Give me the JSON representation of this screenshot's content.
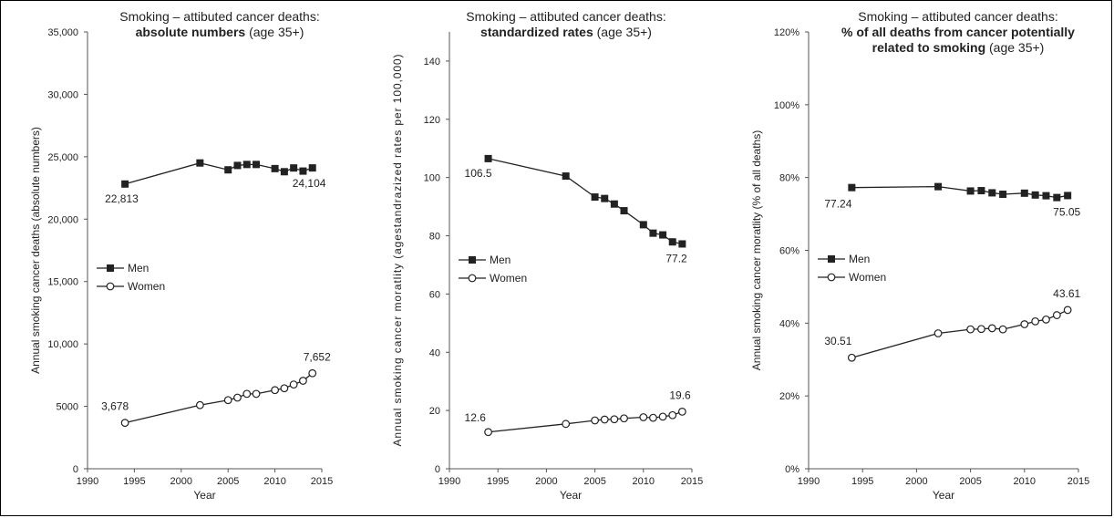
{
  "figure": {
    "x_axis_label": "Year"
  },
  "legend": {
    "men": "Men",
    "women": "Women"
  },
  "chart_data": [
    {
      "type": "line",
      "title_lines": [
        [
          {
            "text": "Smoking – attibuted cancer deaths:",
            "bold": false
          }
        ],
        [
          {
            "text": "absolute numbers",
            "bold": true
          },
          {
            "text": " (age 35+)",
            "bold": false
          }
        ]
      ],
      "xlabel": "Year",
      "ylabel": "Annual smoking cancer deaths (absolute numbers)",
      "xlim": [
        1990,
        2015
      ],
      "ylim": [
        0,
        35000
      ],
      "x_ticks": [
        1990,
        1995,
        2000,
        2005,
        2010,
        2015
      ],
      "y_ticks": [
        0,
        5000,
        10000,
        15000,
        20000,
        25000,
        30000,
        35000
      ],
      "y_tick_labels": [
        "0",
        "5000",
        "10,000",
        "15,000",
        "20,000",
        "25,000",
        "30,000",
        "35,000"
      ],
      "x": [
        1994,
        2002,
        2005,
        2006,
        2007,
        2008,
        2010,
        2011,
        2012,
        2013,
        2014
      ],
      "series": [
        {
          "name": "Men",
          "marker": "square-filled",
          "values": [
            22813,
            24500,
            23950,
            24300,
            24380,
            24380,
            24050,
            23800,
            24100,
            23850,
            24104
          ]
        },
        {
          "name": "Women",
          "marker": "circle-open",
          "values": [
            3678,
            5100,
            5500,
            5700,
            6000,
            6000,
            6300,
            6450,
            6750,
            7050,
            7652
          ]
        }
      ],
      "annotations": [
        {
          "series": "Men",
          "x": 1994,
          "text": "22,813"
        },
        {
          "series": "Men",
          "x": 2014,
          "text": "24,104"
        },
        {
          "series": "Women",
          "x": 1994,
          "text": "3,678"
        },
        {
          "series": "Women",
          "x": 2014,
          "text": "7,652"
        }
      ],
      "grid": false,
      "legend_position": "left-middle"
    },
    {
      "type": "line",
      "title_lines": [
        [
          {
            "text": "Smoking – attibuted cancer deaths:",
            "bold": false
          }
        ],
        [
          {
            "text": "standardized rates",
            "bold": true
          },
          {
            "text": " (age 35+)",
            "bold": false
          }
        ]
      ],
      "xlabel": "Year",
      "ylabel": "Annual smoking cancer moratlity (agestandrazized rates per 100,000)",
      "xlim": [
        1990,
        2015
      ],
      "ylim": [
        0,
        150
      ],
      "x_ticks": [
        1990,
        1995,
        2000,
        2005,
        2010,
        2015
      ],
      "y_ticks": [
        0,
        20,
        40,
        60,
        80,
        100,
        120,
        140
      ],
      "y_tick_labels": [
        "0",
        "20",
        "40",
        "60",
        "80",
        "100",
        "120",
        "140"
      ],
      "x": [
        1994,
        2002,
        2005,
        2006,
        2007,
        2008,
        2010,
        2011,
        2012,
        2013,
        2014
      ],
      "series": [
        {
          "name": "Men",
          "marker": "square-filled",
          "values": [
            106.5,
            100.5,
            93.3,
            92.8,
            90.9,
            88.6,
            83.8,
            80.9,
            80.3,
            77.9,
            77.2
          ]
        },
        {
          "name": "Women",
          "marker": "circle-open",
          "values": [
            12.6,
            15.4,
            16.6,
            16.9,
            17.0,
            17.3,
            17.7,
            17.5,
            17.9,
            18.4,
            19.6
          ]
        }
      ],
      "annotations": [
        {
          "series": "Men",
          "x": 1994,
          "text": "106.5"
        },
        {
          "series": "Men",
          "x": 2014,
          "text": "77.2"
        },
        {
          "series": "Women",
          "x": 1994,
          "text": "12.6"
        },
        {
          "series": "Women",
          "x": 2014,
          "text": "19.6"
        }
      ],
      "grid": false,
      "legend_position": "left-middle"
    },
    {
      "type": "line",
      "title_lines": [
        [
          {
            "text": "Smoking – attibuted cancer deaths:",
            "bold": false
          }
        ],
        [
          {
            "text": "% of all deaths from cancer potentially",
            "bold": true
          }
        ],
        [
          {
            "text": "related to smoking",
            "bold": true
          },
          {
            "text": " (age 35+)",
            "bold": false
          }
        ]
      ],
      "xlabel": "Year",
      "ylabel": "Annual smoking cancer moratlity (% of all deaths)",
      "xlim": [
        1990,
        2015
      ],
      "ylim": [
        0,
        120
      ],
      "x_ticks": [
        1990,
        1995,
        2000,
        2005,
        2010,
        2015
      ],
      "y_ticks": [
        0,
        20,
        40,
        60,
        80,
        100,
        120
      ],
      "y_tick_labels": [
        "0%",
        "20%",
        "40%",
        "60%",
        "80%",
        "100%",
        "120%"
      ],
      "x": [
        1994,
        2002,
        2005,
        2006,
        2007,
        2008,
        2010,
        2011,
        2012,
        2013,
        2014
      ],
      "series": [
        {
          "name": "Men",
          "marker": "square-filled",
          "values": [
            77.24,
            77.5,
            76.3,
            76.4,
            75.8,
            75.4,
            75.7,
            75.2,
            75.0,
            74.5,
            75.05
          ]
        },
        {
          "name": "Women",
          "marker": "circle-open",
          "values": [
            30.51,
            37.2,
            38.3,
            38.4,
            38.6,
            38.3,
            39.7,
            40.5,
            41.0,
            42.2,
            43.61
          ]
        }
      ],
      "annotations": [
        {
          "series": "Men",
          "x": 1994,
          "text": "77.24"
        },
        {
          "series": "Men",
          "x": 2014,
          "text": "75.05"
        },
        {
          "series": "Women",
          "x": 1994,
          "text": "30.51"
        },
        {
          "series": "Women",
          "x": 2014,
          "text": "43.61"
        }
      ],
      "grid": false,
      "legend_position": "left-middle"
    }
  ]
}
